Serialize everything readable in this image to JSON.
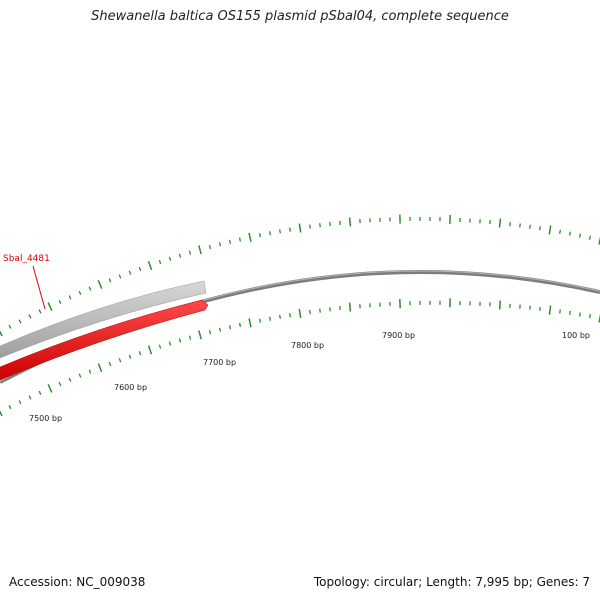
{
  "title": "Shewanella baltica OS155 plasmid pSbal04, complete sequence",
  "accession": "Accession: NC_009038",
  "summary": "Topology: circular; Length: 7,995 bp; Genes: 7",
  "gene_label": "Sbal_4481",
  "tick_labels": [
    "7500 bp",
    "7600 bp",
    "7700 bp",
    "7800 bp",
    "7900 bp",
    "100 bp"
  ],
  "colors": {
    "backbone": "#7d7d7d",
    "gene_forward": "#bdbdbd",
    "gene_reverse": "#ef1c1c",
    "ticks": "#2e8b2e",
    "gene_label": "#e0000a"
  }
}
